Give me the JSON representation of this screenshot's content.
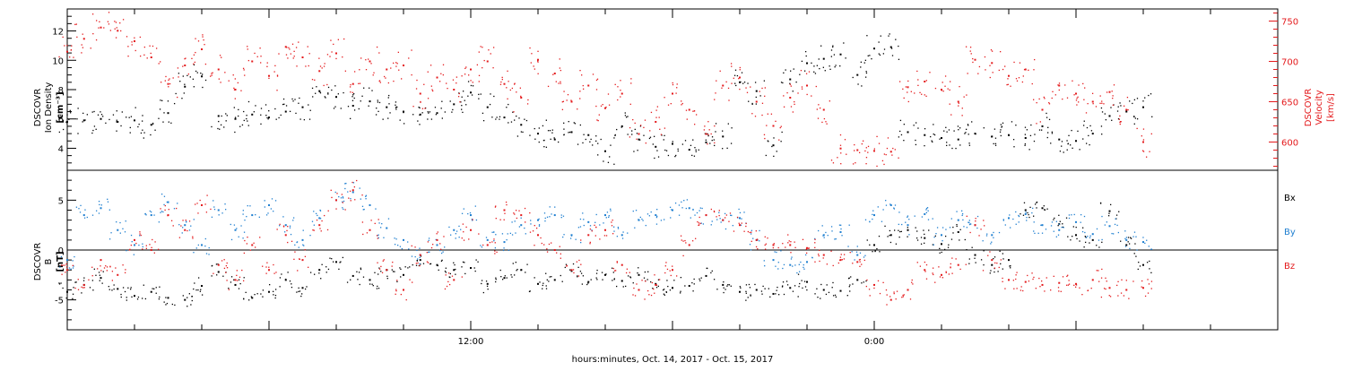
{
  "chart_data": [
    {
      "type": "scatter",
      "ylabel_lines": [
        "DSCOVR",
        "Ion Density",
        "[cm⁻³]"
      ],
      "y2label_lines": [
        "DSCOVR",
        "Velocity",
        "[km/s]"
      ],
      "yticks": [
        "4",
        "6",
        "8",
        "10",
        "12"
      ],
      "y2ticks": [
        "600",
        "650",
        "700",
        "750"
      ],
      "ylim": [
        2.5,
        13.5
      ],
      "y2lim": [
        565,
        765
      ],
      "xlim": [
        0,
        36
      ],
      "colors": {
        "density": "#000000",
        "velocity": "#e41a1c"
      },
      "series": [
        {
          "key": "density",
          "axis": "left",
          "x": [
            0.0,
            0.5,
            1.0,
            1.5,
            2.0,
            2.5,
            3.0,
            3.5,
            4.0,
            4.5,
            5.0,
            5.5,
            6.0,
            6.5,
            7.0,
            7.5,
            8.0,
            8.5,
            9.0,
            9.5,
            10.0,
            10.5,
            11.0,
            11.5,
            12.0,
            12.5,
            13.0,
            13.5,
            14.0,
            14.5,
            15.0,
            15.5,
            16.0,
            16.5,
            17.0,
            17.5,
            18.0,
            18.5,
            19.0,
            19.5,
            20.0,
            20.5,
            21.0,
            21.5,
            22.0,
            22.5,
            23.0,
            23.5,
            24.0,
            24.5,
            25.0,
            25.5,
            26.0,
            26.5,
            27.0,
            27.5,
            28.0,
            28.5,
            29.0,
            29.5,
            30.0,
            30.5,
            31.0,
            31.5,
            32.0
          ],
          "y": [
            5.8,
            5.9,
            6.0,
            5.8,
            5.9,
            5.6,
            6.4,
            8.2,
            8.9,
            6.2,
            6.0,
            6.3,
            6.1,
            6.5,
            6.8,
            7.9,
            7.5,
            6.9,
            7.2,
            6.8,
            6.5,
            6.3,
            6.4,
            7.0,
            7.8,
            6.8,
            6.1,
            5.6,
            5.0,
            4.6,
            5.1,
            4.9,
            3.8,
            5.5,
            4.6,
            4.1,
            4.3,
            3.9,
            4.4,
            4.8,
            8.5,
            7.9,
            4.2,
            8.7,
            9.8,
            10.1,
            10.4,
            9.0,
            10.8,
            10.9,
            5.1,
            4.9,
            4.7,
            4.6,
            5.0,
            4.8,
            4.9,
            4.7,
            5.5,
            4.6,
            4.5,
            5.0,
            6.2,
            6.5,
            6.8
          ]
        },
        {
          "key": "velocity",
          "axis": "right",
          "x": [
            0.0,
            0.5,
            1.0,
            1.5,
            2.0,
            2.5,
            3.0,
            3.5,
            4.0,
            4.5,
            5.0,
            5.5,
            6.0,
            6.5,
            7.0,
            7.5,
            8.0,
            8.5,
            9.0,
            9.5,
            10.0,
            10.5,
            11.0,
            11.5,
            12.0,
            12.5,
            13.0,
            13.5,
            14.0,
            14.5,
            15.0,
            15.5,
            16.0,
            16.5,
            17.0,
            17.5,
            18.0,
            18.5,
            19.0,
            19.5,
            20.0,
            20.5,
            21.0,
            21.5,
            22.0,
            22.5,
            23.0,
            23.5,
            24.0,
            24.5,
            25.0,
            25.5,
            26.0,
            26.5,
            27.0,
            27.5,
            28.0,
            28.5,
            29.0,
            29.5,
            30.0,
            30.5,
            31.0,
            31.5,
            32.0
          ],
          "y": [
            712,
            728,
            742,
            738,
            725,
            705,
            672,
            695,
            715,
            690,
            665,
            700,
            682,
            718,
            705,
            688,
            710,
            672,
            700,
            690,
            695,
            660,
            680,
            665,
            690,
            700,
            672,
            655,
            702,
            685,
            650,
            670,
            642,
            660,
            610,
            625,
            660,
            640,
            610,
            670,
            680,
            650,
            620,
            655,
            670,
            640,
            592,
            590,
            589,
            588,
            668,
            675,
            665,
            650,
            702,
            698,
            682,
            690,
            640,
            670,
            660,
            650,
            662,
            640,
            600
          ]
        }
      ]
    },
    {
      "type": "scatter",
      "ylabel_lines": [
        "DSCOVR",
        "B",
        "[nT]"
      ],
      "yticks": [
        "-5",
        "0",
        "5"
      ],
      "ylim": [
        -8.0,
        8.0
      ],
      "xlim": [
        0,
        36
      ],
      "xticks": [
        "12:00",
        "0:00"
      ],
      "xtick_hours": [
        12,
        24
      ],
      "xlabel": "hours:minutes, Oct. 14, 2017 - Oct. 15, 2017",
      "legend": [
        "Bx",
        "By",
        "Bz"
      ],
      "colors": {
        "Bx": "#000000",
        "By": "#1f7fd0",
        "Bz": "#e41a1c"
      },
      "series": [
        {
          "name": "Bx",
          "x": [
            0.0,
            0.5,
            1.0,
            1.5,
            2.0,
            2.5,
            3.0,
            3.5,
            4.0,
            4.5,
            5.0,
            5.5,
            6.0,
            6.5,
            7.0,
            7.5,
            8.0,
            8.5,
            9.0,
            9.5,
            10.0,
            10.5,
            11.0,
            11.5,
            12.0,
            12.5,
            13.0,
            13.5,
            14.0,
            14.5,
            15.0,
            15.5,
            16.0,
            16.5,
            17.0,
            17.5,
            18.0,
            18.5,
            19.0,
            19.5,
            20.0,
            20.5,
            21.0,
            21.5,
            22.0,
            22.5,
            23.0,
            23.5,
            24.0,
            24.5,
            25.0,
            25.5,
            26.0,
            26.5,
            27.0,
            27.5,
            28.0,
            28.5,
            29.0,
            29.5,
            30.0,
            30.5,
            31.0,
            31.5,
            32.0
          ],
          "y": [
            -4.2,
            -3.5,
            -2.8,
            -3.9,
            -4.6,
            -4.2,
            -4.8,
            -5.0,
            -3.6,
            -2.2,
            -3.5,
            -4.8,
            -4.2,
            -3.0,
            -3.8,
            -2.0,
            -1.2,
            -2.6,
            -3.0,
            -2.0,
            -2.5,
            -1.0,
            -1.5,
            -2.0,
            -1.8,
            -3.4,
            -2.8,
            -2.0,
            -3.4,
            -3.0,
            -2.1,
            -3.2,
            -2.5,
            -3.1,
            -2.5,
            -3.4,
            -3.8,
            -3.6,
            -2.6,
            -3.5,
            -4.2,
            -4.0,
            -4.4,
            -3.8,
            -3.2,
            -4.0,
            -4.1,
            -3.0,
            0.5,
            1.5,
            2.0,
            1.2,
            0.6,
            1.8,
            -0.5,
            -1.5,
            -1.0,
            4.0,
            4.2,
            2.6,
            1.5,
            1.0,
            3.9,
            0.5,
            -1.5
          ]
        },
        {
          "name": "By",
          "x": [
            0.0,
            0.5,
            1.0,
            1.5,
            2.0,
            2.5,
            3.0,
            3.5,
            4.0,
            4.5,
            5.0,
            5.5,
            6.0,
            6.5,
            7.0,
            7.5,
            8.0,
            8.5,
            9.0,
            9.5,
            10.0,
            10.5,
            11.0,
            11.5,
            12.0,
            12.5,
            13.0,
            13.5,
            14.0,
            14.5,
            15.0,
            15.5,
            16.0,
            16.5,
            17.0,
            17.5,
            18.0,
            18.5,
            19.0,
            19.5,
            20.0,
            20.5,
            21.0,
            21.5,
            22.0,
            22.5,
            23.0,
            23.5,
            24.0,
            24.5,
            25.0,
            25.5,
            26.0,
            26.5,
            27.0,
            27.5,
            28.0,
            28.5,
            29.0,
            29.5,
            30.0,
            30.5,
            31.0,
            31.5,
            32.0
          ],
          "y": [
            -1.0,
            3.5,
            4.2,
            2.0,
            0.5,
            3.5,
            4.8,
            2.5,
            0.5,
            4.0,
            2.0,
            3.5,
            4.5,
            2.5,
            1.0,
            3.2,
            5.0,
            5.8,
            4.5,
            2.2,
            1.0,
            -0.5,
            0.5,
            2.0,
            3.5,
            1.0,
            0.8,
            2.5,
            3.0,
            3.5,
            1.5,
            2.8,
            3.5,
            1.5,
            3.0,
            3.5,
            4.0,
            4.2,
            3.5,
            3.0,
            3.2,
            1.0,
            -1.0,
            -1.5,
            -1.2,
            1.5,
            1.8,
            -0.5,
            3.5,
            4.5,
            2.5,
            3.6,
            1.5,
            3.0,
            2.5,
            1.5,
            3.2,
            3.6,
            2.5,
            2.0,
            2.8,
            1.6,
            2.4,
            1.0,
            0.8
          ]
        },
        {
          "name": "Bz",
          "x": [
            0.0,
            0.5,
            1.0,
            1.5,
            2.0,
            2.5,
            3.0,
            3.5,
            4.0,
            4.5,
            5.0,
            5.5,
            6.0,
            6.5,
            7.0,
            7.5,
            8.0,
            8.5,
            9.0,
            9.5,
            10.0,
            10.5,
            11.0,
            11.5,
            12.0,
            12.5,
            13.0,
            13.5,
            14.0,
            14.5,
            15.0,
            15.5,
            16.0,
            16.5,
            17.0,
            17.5,
            18.0,
            18.5,
            19.0,
            19.5,
            20.0,
            20.5,
            21.0,
            21.5,
            22.0,
            22.5,
            23.0,
            23.5,
            24.0,
            24.5,
            25.0,
            25.5,
            26.0,
            26.5,
            27.0,
            27.5,
            28.0,
            28.5,
            29.0,
            29.5,
            30.0,
            30.5,
            31.0,
            31.5,
            32.0
          ],
          "y": [
            -2.0,
            -3.5,
            -1.0,
            -2.5,
            1.0,
            0.0,
            3.5,
            2.0,
            4.5,
            -1.5,
            -3.0,
            0.5,
            -2.0,
            1.5,
            -1.0,
            2.5,
            5.0,
            6.0,
            2.0,
            -2.0,
            -4.0,
            -0.5,
            1.0,
            -3.0,
            2.0,
            0.5,
            4.0,
            3.5,
            1.5,
            0.0,
            -2.0,
            1.5,
            2.0,
            -1.5,
            -4.0,
            -3.5,
            -2.0,
            0.5,
            3.5,
            3.0,
            2.5,
            1.0,
            0.5,
            0.5,
            0.2,
            -0.5,
            -1.0,
            -1.2,
            -3.5,
            -5.0,
            -4.0,
            -2.0,
            -2.5,
            -1.5,
            2.5,
            -1.0,
            -3.0,
            -3.2,
            -3.5,
            -3.3,
            -3.4,
            -3.0,
            -3.8,
            -4.0,
            -3.8
          ]
        }
      ]
    }
  ]
}
